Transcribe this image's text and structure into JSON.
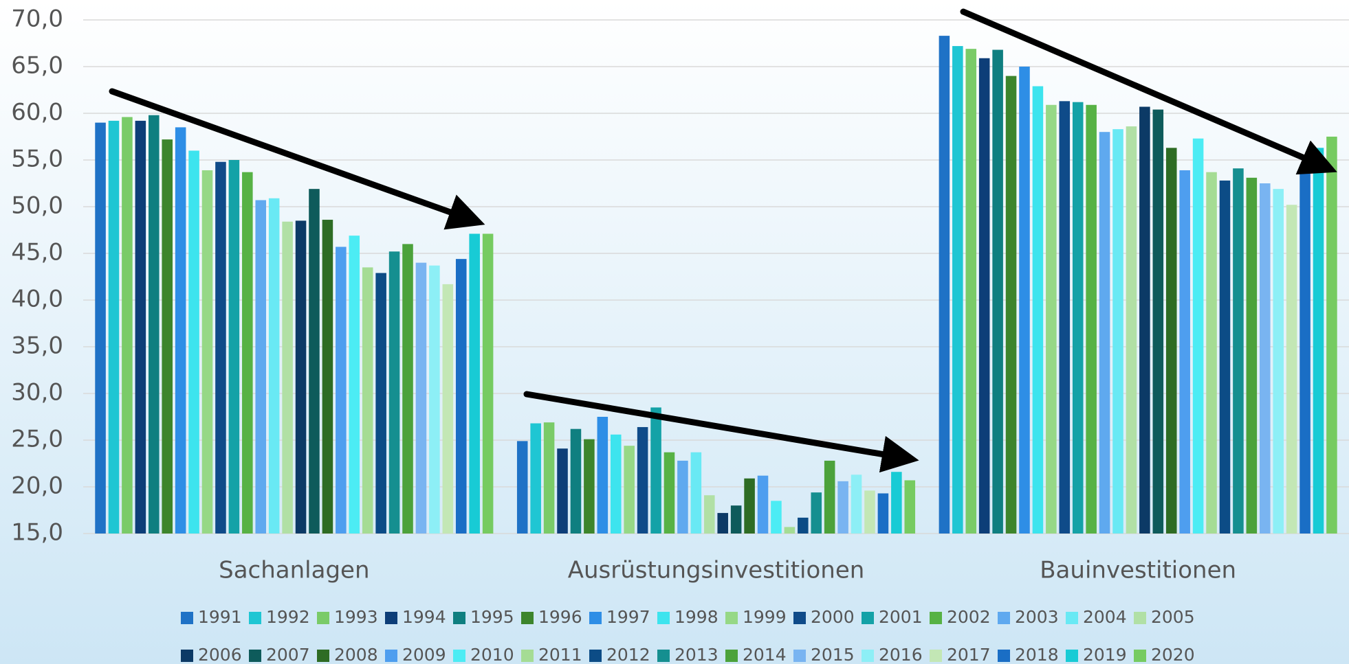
{
  "chart_data": {
    "type": "bar",
    "categories": [
      "Sachanlagen",
      "Ausrüstungsinvestitionen",
      "Bauinvestitionen"
    ],
    "ylim": [
      15,
      70
    ],
    "yticks": [
      {
        "value": 15,
        "label": "15,0"
      },
      {
        "value": 20,
        "label": "20,0"
      },
      {
        "value": 25,
        "label": "25,0"
      },
      {
        "value": 30,
        "label": "30,0"
      },
      {
        "value": 35,
        "label": "35,0"
      },
      {
        "value": 40,
        "label": "40,0"
      },
      {
        "value": 45,
        "label": "45,0"
      },
      {
        "value": 50,
        "label": "50,0"
      },
      {
        "value": 55,
        "label": "55,0"
      },
      {
        "value": 60,
        "label": "60,0"
      },
      {
        "value": 65,
        "label": "65,0"
      },
      {
        "value": 70,
        "label": "70,0"
      }
    ],
    "grid": true,
    "legend": "bottom",
    "series": [
      {
        "name": "1991",
        "color": "#1f72c6",
        "values": [
          59.0,
          24.9,
          68.3
        ]
      },
      {
        "name": "1992",
        "color": "#1fc6d3",
        "values": [
          59.2,
          26.8,
          67.2
        ]
      },
      {
        "name": "1993",
        "color": "#7acb68",
        "values": [
          59.6,
          26.9,
          66.9
        ]
      },
      {
        "name": "1994",
        "color": "#0d3e78",
        "values": [
          59.2,
          24.1,
          65.9
        ]
      },
      {
        "name": "1995",
        "color": "#0f7f80",
        "values": [
          59.8,
          26.2,
          66.8
        ]
      },
      {
        "name": "1996",
        "color": "#3d852c",
        "values": [
          57.2,
          25.1,
          64.0
        ]
      },
      {
        "name": "1997",
        "color": "#2e8ee6",
        "values": [
          58.5,
          27.5,
          65.0
        ]
      },
      {
        "name": "1998",
        "color": "#3de4ee",
        "values": [
          56.0,
          25.6,
          62.9
        ]
      },
      {
        "name": "1999",
        "color": "#96d886",
        "values": [
          53.9,
          24.4,
          60.9
        ]
      },
      {
        "name": "2000",
        "color": "#0f4b89",
        "values": [
          54.8,
          26.4,
          61.3
        ]
      },
      {
        "name": "2001",
        "color": "#14a2a7",
        "values": [
          55.0,
          28.5,
          61.2
        ]
      },
      {
        "name": "2002",
        "color": "#57b245",
        "values": [
          53.7,
          23.7,
          60.9
        ]
      },
      {
        "name": "2003",
        "color": "#5fa9ef",
        "values": [
          50.7,
          22.8,
          58.0
        ]
      },
      {
        "name": "2004",
        "color": "#69e9f4",
        "values": [
          50.9,
          23.7,
          58.3
        ]
      },
      {
        "name": "2005",
        "color": "#b1e0a5",
        "values": [
          48.4,
          19.1,
          58.6
        ]
      },
      {
        "name": "2006",
        "color": "#0c3a66",
        "values": [
          48.5,
          17.2,
          60.7
        ]
      },
      {
        "name": "2007",
        "color": "#0e5b5b",
        "values": [
          51.9,
          18.0,
          60.4
        ]
      },
      {
        "name": "2008",
        "color": "#2e6c24",
        "values": [
          48.6,
          20.9,
          56.3
        ]
      },
      {
        "name": "2009",
        "color": "#4e9eef",
        "values": [
          45.7,
          21.2,
          53.9
        ]
      },
      {
        "name": "2010",
        "color": "#4cecf4",
        "values": [
          46.9,
          18.5,
          57.3
        ]
      },
      {
        "name": "2011",
        "color": "#a5dc94",
        "values": [
          43.5,
          15.7,
          53.7
        ]
      },
      {
        "name": "2012",
        "color": "#0c4c86",
        "values": [
          42.9,
          16.7,
          52.8
        ]
      },
      {
        "name": "2013",
        "color": "#158f90",
        "values": [
          45.2,
          19.4,
          54.1
        ]
      },
      {
        "name": "2014",
        "color": "#4ca23b",
        "values": [
          46.0,
          22.8,
          53.1
        ]
      },
      {
        "name": "2015",
        "color": "#79b4f1",
        "values": [
          44.0,
          20.6,
          52.5
        ]
      },
      {
        "name": "2016",
        "color": "#8defF6",
        "values": [
          43.7,
          21.3,
          51.9
        ]
      },
      {
        "name": "2017",
        "color": "#c3e7b5",
        "values": [
          41.7,
          19.6,
          50.2
        ]
      },
      {
        "name": "2018",
        "color": "#1a6ec5",
        "values": [
          44.4,
          19.3,
          54.5
        ]
      },
      {
        "name": "2019",
        "color": "#18cbd5",
        "values": [
          47.1,
          21.6,
          56.3
        ]
      },
      {
        "name": "2020",
        "color": "#76cb61",
        "values": [
          47.1,
          20.7,
          57.5
        ]
      }
    ]
  }
}
